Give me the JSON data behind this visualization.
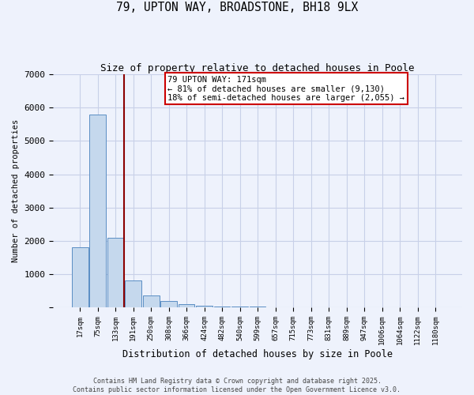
{
  "title": "79, UPTON WAY, BROADSTONE, BH18 9LX",
  "subtitle": "Size of property relative to detached houses in Poole",
  "xlabel": "Distribution of detached houses by size in Poole",
  "ylabel": "Number of detached properties",
  "categories": [
    "17sqm",
    "75sqm",
    "133sqm",
    "191sqm",
    "250sqm",
    "308sqm",
    "366sqm",
    "424sqm",
    "482sqm",
    "540sqm",
    "599sqm",
    "657sqm",
    "715sqm",
    "773sqm",
    "831sqm",
    "889sqm",
    "947sqm",
    "1006sqm",
    "1064sqm",
    "1122sqm",
    "1180sqm"
  ],
  "values": [
    1800,
    5800,
    2100,
    800,
    350,
    200,
    100,
    50,
    30,
    20,
    15,
    10,
    8,
    5,
    3,
    2,
    1,
    1,
    1,
    0,
    0
  ],
  "bar_color": "#c5d8ed",
  "bar_edge_color": "#5b8ec4",
  "background_color": "#eef2fc",
  "grid_color": "#c8d0e8",
  "property_line_color": "#8b0000",
  "annotation_text": "79 UPTON WAY: 171sqm\n← 81% of detached houses are smaller (9,130)\n18% of semi-detached houses are larger (2,055) →",
  "annotation_box_color": "white",
  "annotation_box_edge": "#cc0000",
  "footer_line1": "Contains HM Land Registry data © Crown copyright and database right 2025.",
  "footer_line2": "Contains public sector information licensed under the Open Government Licence v3.0.",
  "ylim": [
    0,
    7000
  ],
  "yticks": [
    0,
    1000,
    2000,
    3000,
    4000,
    5000,
    6000,
    7000
  ]
}
